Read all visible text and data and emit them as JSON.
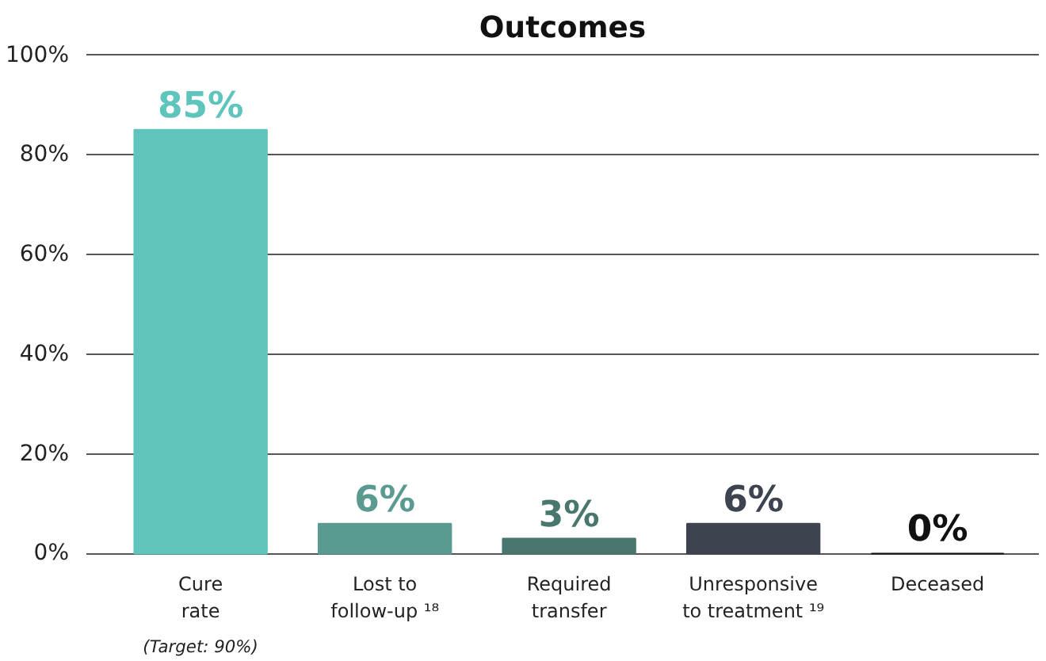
{
  "chart_data": {
    "type": "bar",
    "title": "Outcomes",
    "categories": [
      "Cure\nrate",
      "Lost to\nfollow-up ¹⁸",
      "Required\ntransfer",
      "Unresponsive\nto treatment ¹⁹",
      "Deceased"
    ],
    "values": [
      85,
      6,
      3,
      6,
      0
    ],
    "colors": [
      "#5ec4bc",
      "#5a9a90",
      "#4a7670",
      "#3d4450",
      "#111111"
    ],
    "value_labels": [
      "85%",
      "6%",
      "3%",
      "6%",
      "0%"
    ],
    "ylim": [
      0,
      100
    ],
    "yticks": [
      {
        "value": 0,
        "label": "0%"
      },
      {
        "value": 20,
        "label": "20%"
      },
      {
        "value": 40,
        "label": "40%"
      },
      {
        "value": 60,
        "label": "60%"
      },
      {
        "value": 80,
        "label": "80%"
      },
      {
        "value": 100,
        "label": "100%"
      }
    ],
    "grid": "y",
    "annotations": [
      "(Target: 90%)"
    ]
  }
}
